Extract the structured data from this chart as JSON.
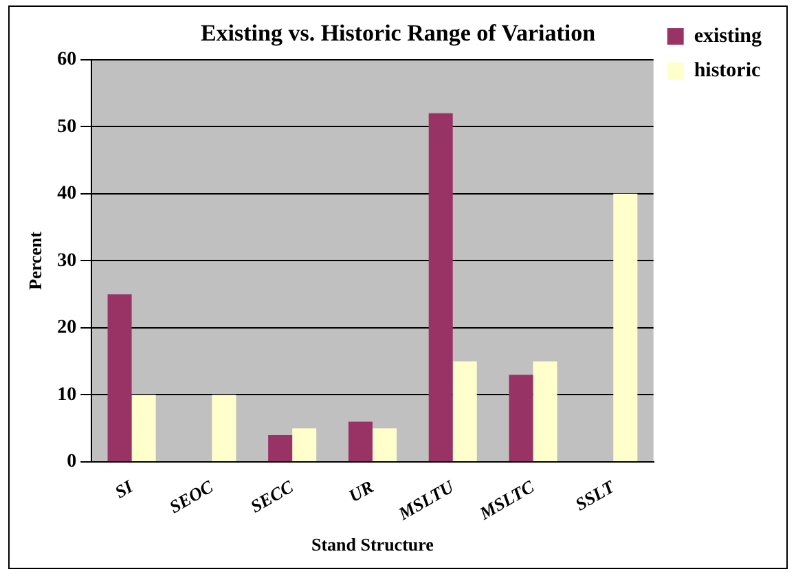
{
  "chart_data": {
    "type": "bar",
    "title": "Existing vs. Historic Range of Variation",
    "xlabel": "Stand Structure",
    "ylabel": "Percent",
    "categories": [
      "SI",
      "SEOC",
      "SECC",
      "UR",
      "MSLTU",
      "MSLTC",
      "SSLT"
    ],
    "series": [
      {
        "name": "existing",
        "color": "#993366",
        "values": [
          25,
          0,
          4,
          6,
          52,
          13,
          0
        ]
      },
      {
        "name": "historic",
        "color": "#ffffcc",
        "values": [
          10,
          10,
          5,
          5,
          15,
          15,
          40
        ]
      }
    ],
    "ylim": [
      0,
      60
    ],
    "yticks": [
      0,
      10,
      20,
      30,
      40,
      50,
      60
    ],
    "grid": "y",
    "legend": "top right"
  }
}
